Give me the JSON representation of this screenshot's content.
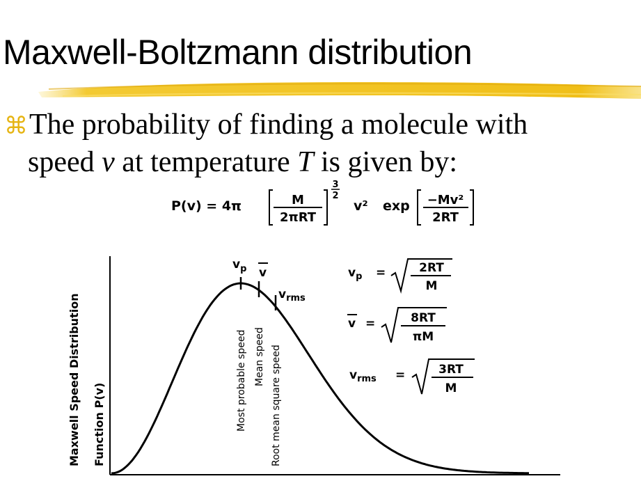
{
  "title": "Maxwell-Boltzmann distribution",
  "bullet": {
    "icon": "command-key-bullet-icon",
    "line1": "The probability of finding a molecule with",
    "line2_a": "speed ",
    "line2_v": "v",
    "line2_b": " at temperature ",
    "line2_T": "T",
    "line2_c": " is given by:"
  },
  "main_formula": {
    "lhs": "P(v) = 4π",
    "frac1_num": "M",
    "frac1_den": "2πRT",
    "exponent_num": "3",
    "exponent_den": "2",
    "v2": "v²",
    "exp": "exp",
    "frac2_num": "−Mv²",
    "frac2_den": "2RT"
  },
  "graph": {
    "ylabel_line1": "Maxwell Speed Distribution",
    "ylabel_line2": "Function  P(v)",
    "vp_label": "v",
    "vp_sub": "p",
    "vbar_label": "v",
    "vrms_label": "v",
    "vrms_sub": "rms",
    "annot_most_probable": "Most probable speed",
    "annot_mean": "Mean speed",
    "annot_rms": "Root mean square speed"
  },
  "side_formulas": {
    "vp": {
      "lhs": "v",
      "sub": "p",
      "eq": "=",
      "num": "2RT",
      "den": "M"
    },
    "vbar": {
      "lhs": "v",
      "eq": "=",
      "num": "8RT",
      "den": "πM"
    },
    "vrms": {
      "lhs": "v",
      "sub": "rms",
      "eq": "=",
      "num": "3RT",
      "den": "M"
    }
  },
  "colors": {
    "accent_stroke": "#f2c41c",
    "bullet": "#e6b412",
    "curve": "#000000"
  }
}
